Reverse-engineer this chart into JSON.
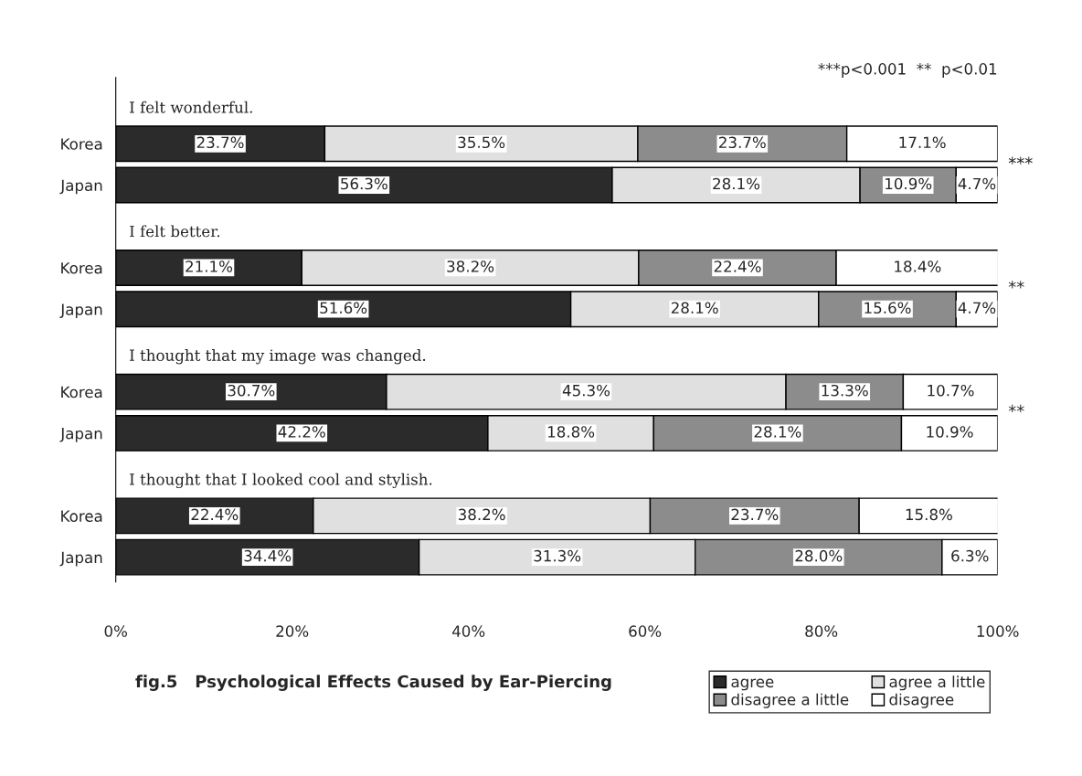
{
  "chart_data": {
    "type": "bar",
    "orientation": "horizontal",
    "stacked": true,
    "title": "fig.5   Psychological Effects Caused by Ear-Piercing",
    "categories": [
      "Korea",
      "Japan",
      "Korea",
      "Japan",
      "Korea",
      "Japan",
      "Korea",
      "Japan"
    ],
    "series": [
      {
        "name": "agree",
        "color": "#2b2b2b",
        "values": [
          23.7,
          56.3,
          21.1,
          51.6,
          30.7,
          42.2,
          22.4,
          34.4
        ],
        "value_labels": [
          "23.7%",
          "56.3%",
          "21.1%",
          "51.6%",
          "30.7%",
          "42.2%",
          "22.4%",
          "34.4%"
        ]
      },
      {
        "name": "agree a little",
        "color": "#e0e0e0",
        "values": [
          35.5,
          28.1,
          38.2,
          28.1,
          45.3,
          18.8,
          38.2,
          31.3
        ],
        "value_labels": [
          "35.5%",
          "28.1%",
          "38.2%",
          "28.1%",
          "45.3%",
          "18.8%",
          "38.2%",
          "31.3%"
        ]
      },
      {
        "name": "disagree a little",
        "color": "#8c8c8c",
        "values": [
          23.7,
          10.9,
          22.4,
          15.6,
          13.3,
          28.1,
          23.7,
          28.0
        ],
        "value_labels": [
          "23.7%",
          "10.9%",
          "22.4%",
          "15.6%",
          "13.3%",
          "28.1%",
          "23.7%",
          "28.0%"
        ]
      },
      {
        "name": "disagree",
        "color": "#ffffff",
        "values": [
          17.1,
          4.7,
          18.4,
          4.7,
          10.7,
          10.9,
          15.8,
          6.3
        ],
        "value_labels": [
          "17.1%",
          "4.7%",
          "18.4%",
          "4.7%",
          "10.7%",
          "10.9%",
          "15.8%",
          "6.3%"
        ]
      }
    ],
    "xlim": [
      0,
      100
    ],
    "xticks": [
      {
        "value": 0,
        "label": "0%"
      },
      {
        "value": 20,
        "label": "20%"
      },
      {
        "value": 40,
        "label": "40%"
      },
      {
        "value": 60,
        "label": "60%"
      },
      {
        "value": 80,
        "label": "80%"
      },
      {
        "value": 100,
        "label": "100%"
      }
    ],
    "annotations": [
      "***p<0.001  **  p<0.01",
      "I felt wonderful.",
      "I felt better.",
      "I thought that my image was changed.",
      "I thought that I looked cool and stylish.",
      "***",
      "**",
      "**"
    ],
    "legend": "bottom right",
    "grid": false
  }
}
